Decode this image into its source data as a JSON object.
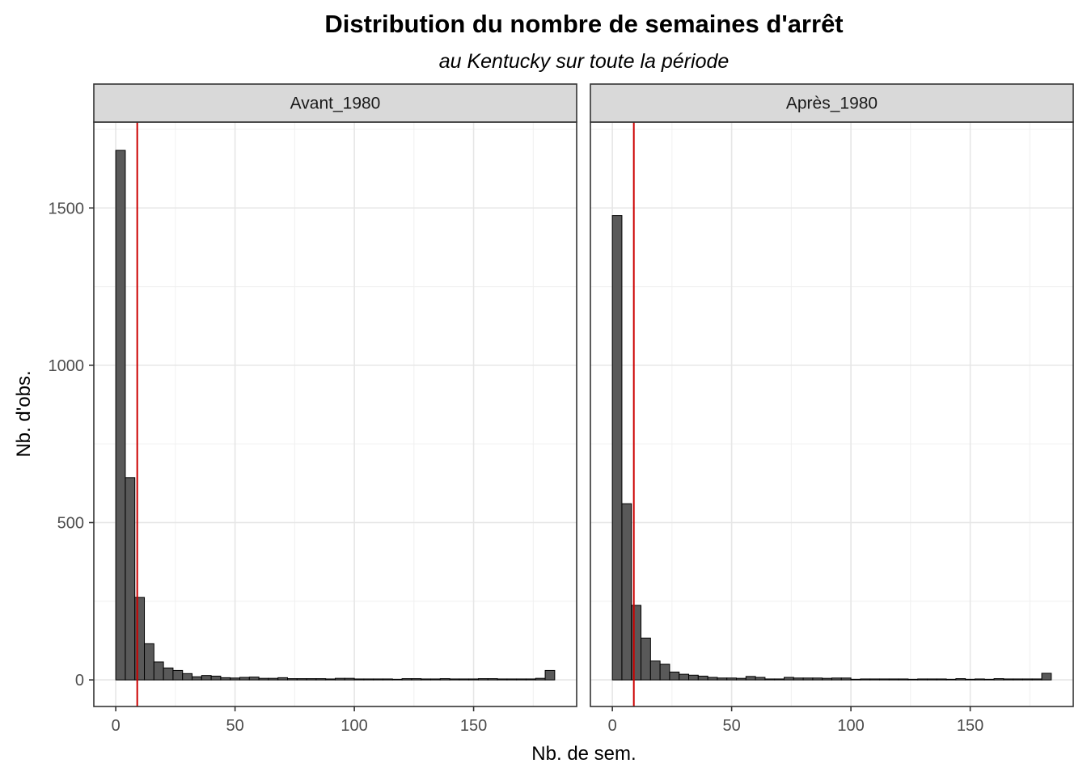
{
  "chart_data": {
    "type": "bar",
    "title": "Distribution du nombre de semaines d'arrêt",
    "subtitle": "au Kentucky sur toute la période",
    "xlabel": "Nb. de sem.",
    "ylabel": "Nb. d'obs.",
    "xlim": [
      -9.2,
      193.2
    ],
    "ylim": [
      -84.5,
      1773
    ],
    "x_ticks": [
      0,
      50,
      100,
      150
    ],
    "x_tick_labels": [
      "0",
      "50",
      "100",
      "150"
    ],
    "y_ticks": [
      0,
      500,
      1000,
      1500
    ],
    "y_tick_labels": [
      "0",
      "500",
      "1000",
      "1500"
    ],
    "grid": true,
    "bin_width": 4,
    "bar_color": "#595959",
    "bar_outline_color": "#000000",
    "vline_color": "#cc0000",
    "panels": [
      {
        "label": "Avant_1980",
        "vline_x": 9,
        "bin_starts": [
          0,
          4,
          8,
          12,
          16,
          20,
          24,
          28,
          32,
          36,
          40,
          44,
          48,
          52,
          56,
          60,
          64,
          68,
          72,
          76,
          80,
          84,
          88,
          92,
          96,
          100,
          104,
          108,
          112,
          116,
          120,
          124,
          128,
          132,
          136,
          140,
          144,
          148,
          152,
          156,
          160,
          164,
          168,
          172,
          176,
          180
        ],
        "values": [
          1683,
          643,
          262,
          115,
          57,
          38,
          30,
          20,
          10,
          14,
          12,
          7,
          6,
          8,
          9,
          5,
          5,
          7,
          4,
          4,
          4,
          4,
          3,
          5,
          5,
          3,
          3,
          3,
          3,
          2,
          4,
          4,
          3,
          3,
          4,
          3,
          3,
          3,
          4,
          4,
          3,
          3,
          3,
          3,
          5,
          30
        ]
      },
      {
        "label": "Après_1980",
        "vline_x": 9,
        "bin_starts": [
          0,
          4,
          8,
          12,
          16,
          20,
          24,
          28,
          32,
          36,
          40,
          44,
          48,
          52,
          56,
          60,
          64,
          68,
          72,
          76,
          80,
          84,
          88,
          92,
          96,
          100,
          104,
          108,
          112,
          116,
          120,
          124,
          128,
          132,
          136,
          140,
          144,
          148,
          152,
          156,
          160,
          164,
          168,
          172,
          176,
          180
        ],
        "values": [
          1476,
          560,
          237,
          133,
          60,
          50,
          25,
          18,
          15,
          12,
          8,
          6,
          6,
          5,
          11,
          8,
          3,
          3,
          8,
          6,
          6,
          6,
          5,
          6,
          6,
          2,
          3,
          3,
          3,
          3,
          3,
          2,
          3,
          3,
          3,
          2,
          4,
          2,
          3,
          2,
          4,
          3,
          3,
          3,
          3,
          21
        ]
      }
    ]
  }
}
